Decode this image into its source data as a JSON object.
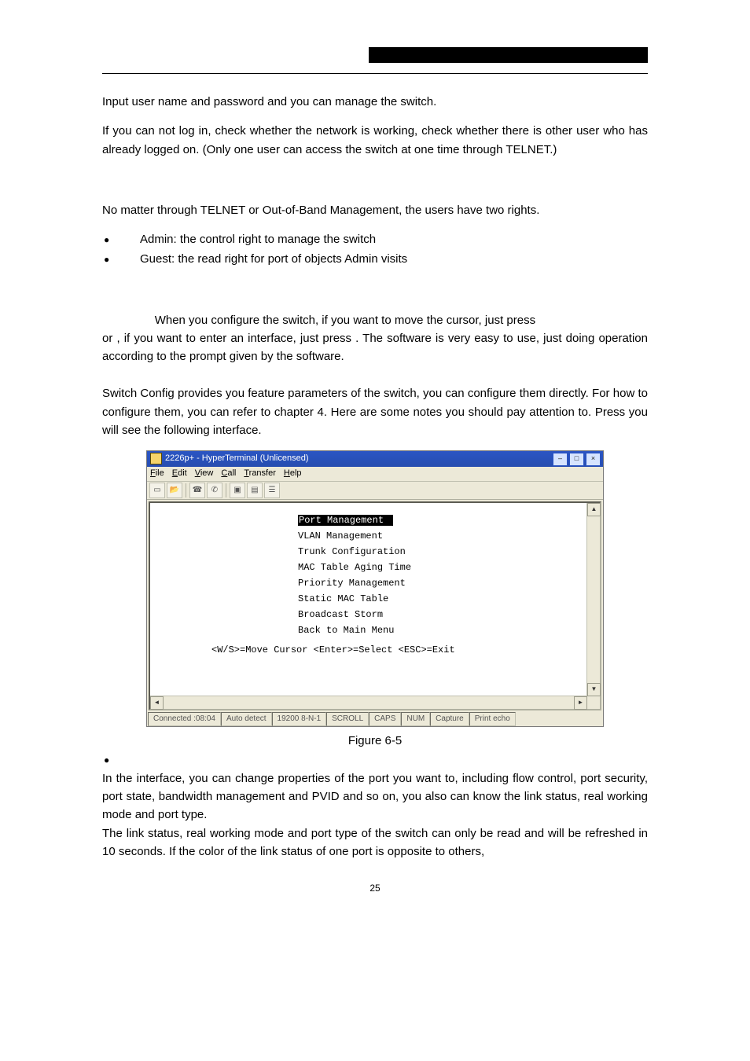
{
  "body": {
    "p1": "Input user name and password and you can manage the switch.",
    "p2": "If you can not log in, check whether the network is working, check whether there is other user who has already logged on. (Only one user can access the switch at one time through TELNET.)",
    "p3": "No matter through TELNET or Out-of-Band Management, the users have two rights.",
    "bullets": [
      "Admin:   the control right to manage the switch",
      "Guest:   the read right for port of objects Admin visits"
    ],
    "p4a": "                When you configure the switch, if you want to move the cursor, just press",
    "p4b": "or   , if you want to enter an interface, just press        . The software is very easy to use, just doing operation according to the prompt given by the software.",
    "p5": "Switch Config provides you feature parameters of the switch, you can configure them directly. For how to configure them, you can refer to chapter 4. Here are some notes you should pay attention to. Press        you will see the following interface.",
    "caption": "Figure 6-5",
    "p6": "In the interface, you can change properties of the port you want to, including flow control, port security, port state, bandwidth management and PVID and so on, you also can know the link status, real working mode and port type.",
    "p7": "The link status, real working mode and port type of the switch can only be read and will be refreshed in 10 seconds. If the color of the link status of one port is opposite to others,",
    "pagenum": "25"
  },
  "ht": {
    "title": "2226p+ - HyperTerminal (Unlicensed)",
    "menus": [
      "File",
      "Edit",
      "View",
      "Call",
      "Transfer",
      "Help"
    ],
    "winbtns": [
      "–",
      "□",
      "×"
    ],
    "term": {
      "lines": [
        {
          "text": "Port Management",
          "hl": true
        },
        {
          "text": "VLAN Management",
          "hl": false
        },
        {
          "text": "Trunk Configuration",
          "hl": false
        },
        {
          "text": "MAC Table Aging Time",
          "hl": false
        },
        {
          "text": "Priority Management",
          "hl": false
        },
        {
          "text": "Static MAC Table",
          "hl": false
        },
        {
          "text": "Broadcast Storm",
          "hl": false
        },
        {
          "text": "Back to Main Menu",
          "hl": false
        }
      ],
      "footer": "<W/S>=Move Cursor  <Enter>=Select  <ESC>=Exit"
    },
    "status": [
      "Connected :08:04",
      "Auto detect",
      "19200 8-N-1",
      "SCROLL",
      "CAPS",
      "NUM",
      "Capture",
      "Print echo"
    ]
  }
}
